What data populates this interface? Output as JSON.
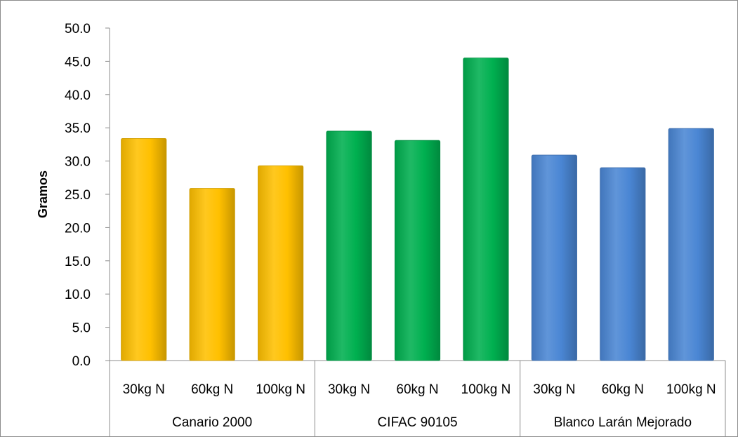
{
  "chart_data": {
    "type": "bar",
    "title": "",
    "xlabel": "",
    "ylabel": "Gramos",
    "ylim": [
      0,
      50
    ],
    "yticks": [
      "0.0",
      "5.0",
      "10.0",
      "15.0",
      "20.0",
      "25.0",
      "30.0",
      "35.0",
      "40.0",
      "45.0",
      "50.0"
    ],
    "grid": false,
    "legend": "none",
    "groups": [
      {
        "name": "Canario 2000",
        "color": "#FFC000",
        "categories": [
          "30kg N",
          "60kg N",
          "100kg N"
        ],
        "values": [
          33.4,
          25.9,
          29.3
        ]
      },
      {
        "name": "CIFAC 90105",
        "color": "#00B050",
        "categories": [
          "30kg N",
          "60kg N",
          "100kg N"
        ],
        "values": [
          34.5,
          33.1,
          45.5
        ]
      },
      {
        "name": "Blanco Larán Mejorado",
        "color": "#4A86D4",
        "categories": [
          "30kg N",
          "60kg N",
          "100kg N"
        ],
        "values": [
          30.9,
          29.0,
          34.9
        ]
      }
    ]
  }
}
